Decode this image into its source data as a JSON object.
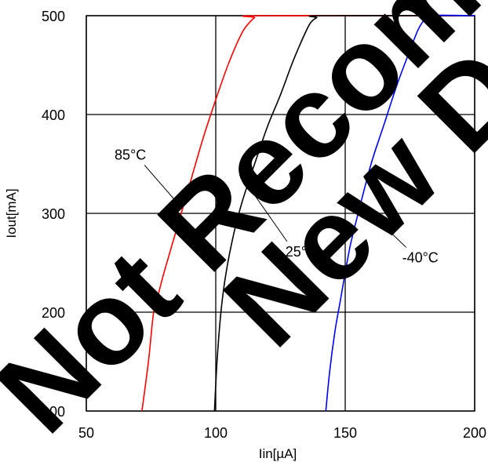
{
  "chart_data": {
    "type": "line",
    "xlabel": "Iin[µA]",
    "ylabel": "Iout[mA]",
    "xlim": [
      50,
      200
    ],
    "ylim": [
      100,
      500
    ],
    "xticks": [
      "50",
      "100",
      "150",
      "200"
    ],
    "yticks": [
      "100",
      "200",
      "300",
      "400",
      "500"
    ],
    "grid": true,
    "legend": "none",
    "series": [
      {
        "name": "85°C",
        "color": "#ff0000",
        "x": [
          71.5,
          74,
          76,
          78,
          80,
          85,
          90,
          95,
          100,
          105,
          110,
          113,
          115,
          117,
          200
        ],
        "y": [
          100,
          150,
          200,
          220,
          240,
          285,
          330,
          375,
          415,
          452,
          482,
          493,
          498,
          500,
          500
        ]
      },
      {
        "name": "25°C",
        "color": "#000000",
        "x": [
          99.5,
          100.5,
          102,
          104,
          107,
          110,
          115,
          120,
          125,
          130,
          135,
          137,
          139,
          141,
          200
        ],
        "y": [
          100,
          150,
          200,
          240,
          280,
          310,
          350,
          388,
          420,
          455,
          485,
          494,
          498,
          500,
          500
        ]
      },
      {
        "name": "-40°C",
        "color": "#0000ff",
        "x": [
          142.5,
          144,
          146,
          148,
          150,
          152,
          155,
          160,
          165,
          170,
          175,
          178,
          180,
          182,
          200
        ],
        "y": [
          100,
          140,
          180,
          210,
          240,
          268,
          300,
          350,
          390,
          430,
          465,
          485,
          494,
          500,
          500
        ]
      }
    ],
    "annotations": [
      {
        "text": "85°C",
        "x": 67,
        "y": 360,
        "target_x": 87,
        "target_y": 305
      },
      {
        "text": "25°C",
        "x": 133,
        "y": 262,
        "target_x": 113,
        "target_y": 326
      },
      {
        "text": "-40°C",
        "x": 179,
        "y": 256,
        "target_x": 156,
        "target_y": 310
      }
    ]
  },
  "watermark": {
    "line1": "Not Recommended for",
    "line2": "New Designs",
    "color": "#000000"
  }
}
